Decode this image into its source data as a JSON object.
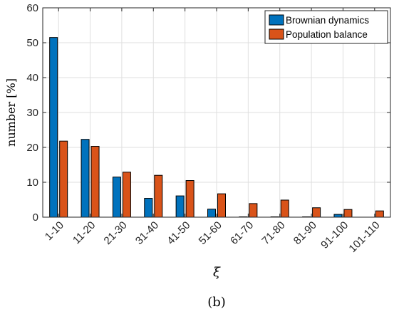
{
  "chart_data": {
    "type": "bar",
    "categories": [
      "1-10",
      "11-20",
      "21-30",
      "31-40",
      "41-50",
      "51-60",
      "61-70",
      "71-80",
      "81-90",
      "91-100",
      "101-110"
    ],
    "series": [
      {
        "name": "Brownian dynamics",
        "color": "#0072BD",
        "values": [
          51.5,
          22.3,
          11.5,
          5.4,
          6.1,
          2.3,
          0.1,
          0.1,
          0.1,
          0.8,
          0
        ]
      },
      {
        "name": "Population balance",
        "color": "#D95319",
        "values": [
          21.8,
          20.3,
          12.9,
          12.0,
          10.5,
          6.7,
          3.9,
          4.9,
          2.7,
          2.2,
          1.8
        ]
      }
    ],
    "ylabel": "number [%]",
    "xlabel": "ξ",
    "caption": "(b)",
    "ylim": [
      0,
      60
    ],
    "yticks": [
      0,
      10,
      20,
      30,
      40,
      50,
      60
    ],
    "grid": true,
    "legend_position": "top-right"
  }
}
